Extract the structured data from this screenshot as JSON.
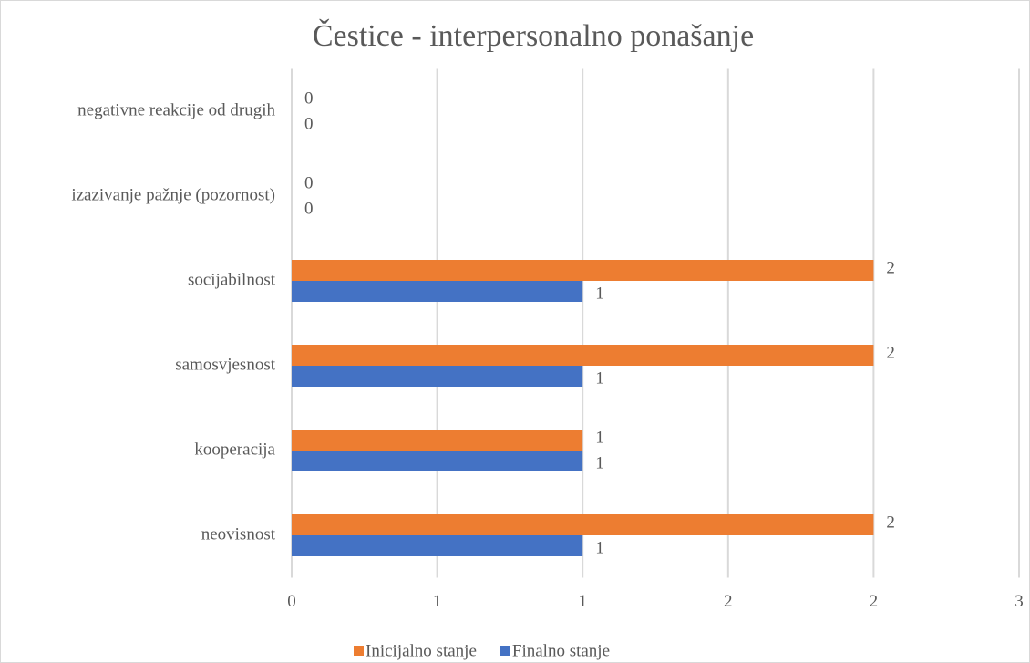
{
  "chart_data": {
    "type": "barh",
    "title": "Čestice - interpersonalno ponašanje",
    "categories": [
      "neovisnost",
      "kooperacija",
      "samosvjesnost",
      "socijabilnost",
      "izazivanje pažnje (pozornost)",
      "negativne reakcije od drugih"
    ],
    "series": [
      {
        "name": "Inicijalno stanje",
        "color": "#ed7d31",
        "values": [
          2,
          1,
          2,
          2,
          0,
          0
        ]
      },
      {
        "name": "Finalno stanje",
        "color": "#4472c4",
        "values": [
          1,
          1,
          1,
          1,
          0,
          0
        ]
      }
    ],
    "xlim": [
      0,
      2.5
    ],
    "xticks": [
      0,
      {
        "value": 0.5,
        "label": "1"
      },
      1,
      {
        "value": 1.5,
        "label": "2"
      },
      2,
      {
        "value": 2.5,
        "label": "3"
      }
    ],
    "grid": true,
    "legend": "bottom"
  }
}
